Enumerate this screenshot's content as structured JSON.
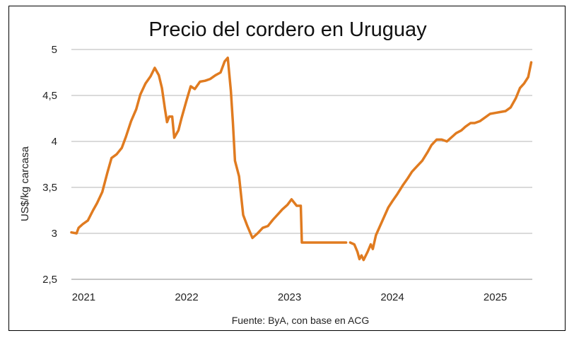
{
  "chart_data": {
    "type": "line",
    "title": "Precio del cordero en Uruguay",
    "ylabel": "US$/kg carcasa",
    "xlabel": "",
    "source": "Fuente: ByA, con base en ACG",
    "ylim": [
      2.5,
      5
    ],
    "xlim": [
      2020.98,
      2025.46
    ],
    "y_ticks": [
      {
        "value": 2.5,
        "label": "2,5"
      },
      {
        "value": 3,
        "label": "3"
      },
      {
        "value": 3.5,
        "label": "3,5"
      },
      {
        "value": 4,
        "label": "4"
      },
      {
        "value": 4.5,
        "label": "4,5"
      },
      {
        "value": 5,
        "label": "5"
      }
    ],
    "x_ticks": [
      {
        "value": 2021.1,
        "label": "2021"
      },
      {
        "value": 2022.1,
        "label": "2022"
      },
      {
        "value": 2023.1,
        "label": "2023"
      },
      {
        "value": 2024.1,
        "label": "2024"
      },
      {
        "value": 2025.1,
        "label": "2025"
      }
    ],
    "grid": true,
    "color": "#E07B20",
    "series": [
      {
        "segments": [
          [
            [
              2020.98,
              3.01
            ],
            [
              2021.03,
              3.0
            ],
            [
              2021.05,
              3.06
            ],
            [
              2021.09,
              3.1
            ],
            [
              2021.14,
              3.14
            ],
            [
              2021.19,
              3.25
            ],
            [
              2021.23,
              3.33
            ],
            [
              2021.28,
              3.45
            ],
            [
              2021.33,
              3.66
            ],
            [
              2021.37,
              3.82
            ],
            [
              2021.42,
              3.86
            ],
            [
              2021.47,
              3.93
            ],
            [
              2021.51,
              4.05
            ],
            [
              2021.56,
              4.22
            ],
            [
              2021.61,
              4.35
            ],
            [
              2021.65,
              4.51
            ],
            [
              2021.7,
              4.63
            ],
            [
              2021.75,
              4.71
            ],
            [
              2021.79,
              4.8
            ],
            [
              2021.83,
              4.72
            ],
            [
              2021.86,
              4.58
            ],
            [
              2021.89,
              4.35
            ],
            [
              2021.91,
              4.21
            ],
            [
              2021.93,
              4.27
            ],
            [
              2021.96,
              4.27
            ],
            [
              2021.98,
              4.04
            ],
            [
              2022.02,
              4.12
            ],
            [
              2022.05,
              4.25
            ],
            [
              2022.1,
              4.45
            ],
            [
              2022.14,
              4.6
            ],
            [
              2022.18,
              4.57
            ],
            [
              2022.23,
              4.65
            ],
            [
              2022.28,
              4.66
            ],
            [
              2022.33,
              4.68
            ],
            [
              2022.38,
              4.72
            ],
            [
              2022.43,
              4.75
            ],
            [
              2022.47,
              4.87
            ],
            [
              2022.5,
              4.91
            ],
            [
              2022.53,
              4.55
            ],
            [
              2022.55,
              4.2
            ],
            [
              2022.57,
              3.79
            ],
            [
              2022.61,
              3.62
            ],
            [
              2022.65,
              3.2
            ],
            [
              2022.69,
              3.08
            ],
            [
              2022.74,
              2.95
            ],
            [
              2022.79,
              3.0
            ],
            [
              2022.84,
              3.06
            ],
            [
              2022.89,
              3.08
            ],
            [
              2022.94,
              3.15
            ],
            [
              2022.99,
              3.21
            ],
            [
              2023.03,
              3.26
            ],
            [
              2023.08,
              3.31
            ],
            [
              2023.12,
              3.37
            ],
            [
              2023.17,
              3.3
            ],
            [
              2023.21,
              3.3
            ],
            [
              2023.22,
              2.9
            ],
            [
              2023.3,
              2.9
            ],
            [
              2023.4,
              2.9
            ],
            [
              2023.5,
              2.9
            ],
            [
              2023.6,
              2.9
            ],
            [
              2023.65,
              2.9
            ]
          ],
          [
            [
              2023.69,
              2.9
            ],
            [
              2023.73,
              2.88
            ],
            [
              2023.76,
              2.8
            ],
            [
              2023.78,
              2.72
            ],
            [
              2023.8,
              2.76
            ],
            [
              2023.82,
              2.71
            ],
            [
              2023.86,
              2.8
            ],
            [
              2023.89,
              2.88
            ],
            [
              2023.91,
              2.83
            ],
            [
              2023.94,
              2.98
            ],
            [
              2023.98,
              3.08
            ],
            [
              2024.02,
              3.18
            ],
            [
              2024.06,
              3.28
            ],
            [
              2024.1,
              3.35
            ],
            [
              2024.15,
              3.43
            ],
            [
              2024.2,
              3.52
            ],
            [
              2024.25,
              3.6
            ],
            [
              2024.29,
              3.67
            ],
            [
              2024.34,
              3.73
            ],
            [
              2024.39,
              3.79
            ],
            [
              2024.44,
              3.88
            ],
            [
              2024.48,
              3.96
            ],
            [
              2024.53,
              4.02
            ],
            [
              2024.58,
              4.02
            ],
            [
              2024.63,
              4.0
            ],
            [
              2024.68,
              4.05
            ],
            [
              2024.72,
              4.09
            ],
            [
              2024.77,
              4.12
            ],
            [
              2024.81,
              4.16
            ],
            [
              2024.86,
              4.2
            ],
            [
              2024.9,
              4.2
            ],
            [
              2024.95,
              4.22
            ],
            [
              2025.0,
              4.26
            ],
            [
              2025.05,
              4.3
            ],
            [
              2025.1,
              4.31
            ],
            [
              2025.15,
              4.32
            ],
            [
              2025.2,
              4.33
            ],
            [
              2025.25,
              4.37
            ],
            [
              2025.3,
              4.47
            ],
            [
              2025.34,
              4.58
            ],
            [
              2025.38,
              4.63
            ],
            [
              2025.42,
              4.7
            ],
            [
              2025.45,
              4.86
            ]
          ]
        ]
      }
    ]
  }
}
